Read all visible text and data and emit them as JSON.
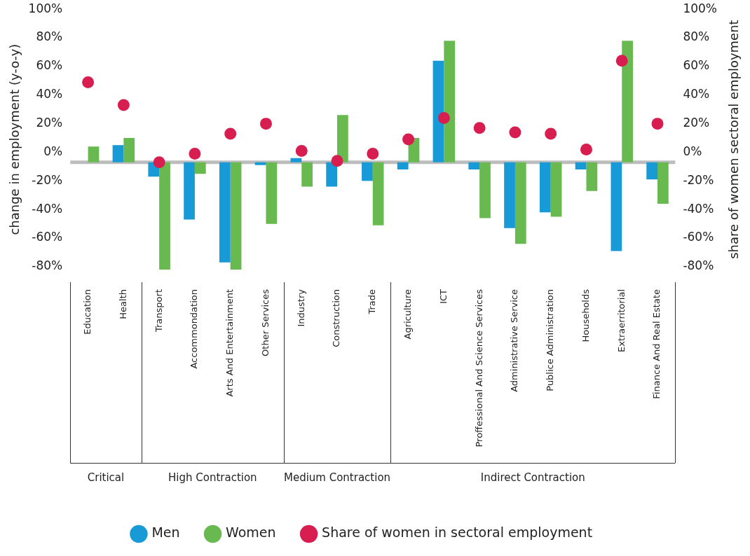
{
  "chart_data": {
    "type": "bar",
    "categories": [
      "Education",
      "Health",
      "Transport",
      "Accommondation",
      "Arts And Entertainment",
      "Other Services",
      "Industry",
      "Construction",
      "Trade",
      "Agriculture",
      "ICT",
      "Proffessional And Science Services",
      "Administrative Service",
      "Publice Administration",
      "Households",
      "Extraerritorial",
      "Finance And Real Estate"
    ],
    "series": [
      {
        "name": "Men",
        "type": "bar",
        "color": "#189ad6",
        "base": [
          null,
          -7,
          -7,
          -7,
          -7,
          -7,
          -7,
          -7,
          -7,
          -7,
          -7,
          -7,
          -7,
          -7,
          -7,
          -7,
          -7
        ],
        "values": [
          null,
          12,
          -10,
          -40,
          -70,
          -2,
          3,
          -17,
          -13,
          -5,
          71,
          -5,
          -46,
          -35,
          -5,
          -62,
          -12
        ]
      },
      {
        "name": "Women",
        "type": "bar",
        "color": "#68b94f",
        "base": [
          -7,
          -7,
          -7,
          -7,
          -7,
          -7,
          -7,
          -7,
          -7,
          -7,
          -7,
          -7,
          -7,
          -7,
          -7,
          -7,
          -7
        ],
        "values": [
          11,
          17,
          -75,
          -8,
          -75,
          -43,
          -17,
          33,
          -44,
          17,
          85,
          -39,
          -57,
          -38,
          -20,
          85,
          -29
        ]
      },
      {
        "name": "Share of women in sectoral employment",
        "type": "scatter",
        "axis": "y2",
        "color": "#d81e50",
        "x": [
          "Education",
          "Health",
          "Transport",
          "Accommondation",
          "Arts And Entertainment",
          "Other Services",
          "Industry",
          "Construction",
          "Trade",
          "Agriculture",
          "ICT",
          "Proffessional And Science Services",
          "Administrative Service",
          "Publice Administration",
          "Households",
          "Extraerritorial",
          "Finance And Real Estate"
        ],
        "values": [
          49,
          33,
          -7,
          -1,
          13,
          20,
          1,
          -6,
          -1,
          9,
          24,
          17,
          14,
          13,
          2,
          64,
          20
        ]
      }
    ],
    "ylabel": "change in employment (y-o-y)",
    "y2label": "share of women sectoral employment",
    "ylim": [
      -82,
      100
    ],
    "yticks": [
      {
        "value": -80,
        "label": "-80%"
      },
      {
        "value": -60,
        "label": "-60%"
      },
      {
        "value": -40,
        "label": "-40%"
      },
      {
        "value": -20,
        "label": "-20%"
      },
      {
        "value": 0,
        "label": "0%"
      },
      {
        "value": 20,
        "label": "20%"
      },
      {
        "value": 40,
        "label": "40%"
      },
      {
        "value": 60,
        "label": "60%"
      },
      {
        "value": 80,
        "label": "80%"
      },
      {
        "value": 100,
        "label": "100%"
      }
    ],
    "y2lim": [
      -82,
      100
    ],
    "y2ticks": [
      {
        "value": -80,
        "label": "-80%"
      },
      {
        "value": -60,
        "label": "-60%"
      },
      {
        "value": -40,
        "label": "-40%"
      },
      {
        "value": -20,
        "label": "-20%"
      },
      {
        "value": 0,
        "label": "0%"
      },
      {
        "value": 20,
        "label": "20%"
      },
      {
        "value": 40,
        "label": "40%"
      },
      {
        "value": 60,
        "label": "60%"
      },
      {
        "value": 80,
        "label": "80%"
      },
      {
        "value": 100,
        "label": "100%"
      }
    ],
    "ref_lines": [
      {
        "axis": "y",
        "value": -7,
        "color": "#bdbdbd"
      }
    ],
    "annotations": [
      "Critical",
      "High Contraction",
      "Medium Contraction",
      "Indirect Contraction"
    ],
    "grid": false,
    "legend": "bottom",
    "marker": "circle"
  }
}
